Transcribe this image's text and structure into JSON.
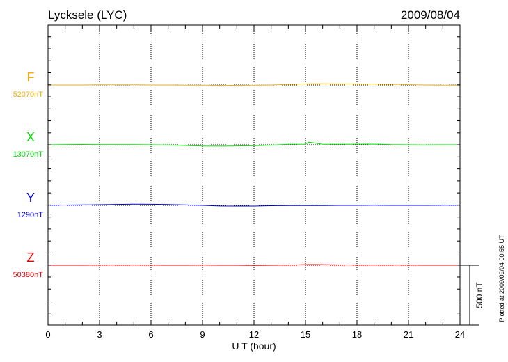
{
  "chart_data": {
    "type": "line",
    "title": "Lycksele (LYC)",
    "date": "2009/08/04",
    "xlabel": "U T (hour)",
    "xlim": [
      0,
      24
    ],
    "xticks": [
      "0",
      "3",
      "6",
      "9",
      "12",
      "15",
      "18",
      "21",
      "24"
    ],
    "grid": "vertical dotted every 3 hours",
    "scale_label": "500 nT",
    "scale_nT": 500,
    "plotted_note": "Plotted at 2009/09/04 00:55 UT",
    "x": [
      0,
      1,
      2,
      3,
      4,
      5,
      6,
      7,
      8,
      9,
      10,
      11,
      12,
      13,
      14,
      15,
      15.2,
      16,
      17,
      18,
      19,
      20,
      21,
      22,
      23,
      24
    ],
    "series": [
      {
        "name": "F",
        "baseline_label": "52070nT",
        "baseline": 52070,
        "color": "#f5b000",
        "values": [
          52070,
          52070,
          52070,
          52071,
          52071,
          52071,
          52070,
          52070,
          52069,
          52068,
          52067,
          52067,
          52068,
          52070,
          52075,
          52079,
          52080,
          52080,
          52079,
          52079,
          52078,
          52076,
          52073,
          52070,
          52069,
          52069
        ]
      },
      {
        "name": "X",
        "baseline_label": "13070nT",
        "baseline": 13070,
        "color": "#00e000",
        "values": [
          13070,
          13071,
          13073,
          13072,
          13071,
          13071,
          13070,
          13069,
          13064,
          13060,
          13059,
          13061,
          13063,
          13067,
          13074,
          13075,
          13092,
          13074,
          13074,
          13075,
          13076,
          13071,
          13070,
          13069,
          13070,
          13070
        ]
      },
      {
        "name": "Y",
        "baseline_label": "1290nT",
        "baseline": 1290,
        "color": "#0000e0",
        "values": [
          1292,
          1293,
          1294,
          1296,
          1298,
          1300,
          1299,
          1297,
          1294,
          1290,
          1285,
          1284,
          1284,
          1287,
          1288,
          1289,
          1288,
          1289,
          1290,
          1290,
          1291,
          1290,
          1290,
          1290,
          1291,
          1291
        ]
      },
      {
        "name": "Z",
        "baseline_label": "50380nT",
        "baseline": 50380,
        "color": "#e00000",
        "values": [
          50380,
          50380,
          50380,
          50381,
          50381,
          50381,
          50381,
          50380,
          50380,
          50381,
          50380,
          50380,
          50378,
          50380,
          50382,
          50385,
          50386,
          50385,
          50383,
          50382,
          50382,
          50382,
          50381,
          50380,
          50380,
          50380
        ]
      }
    ]
  }
}
